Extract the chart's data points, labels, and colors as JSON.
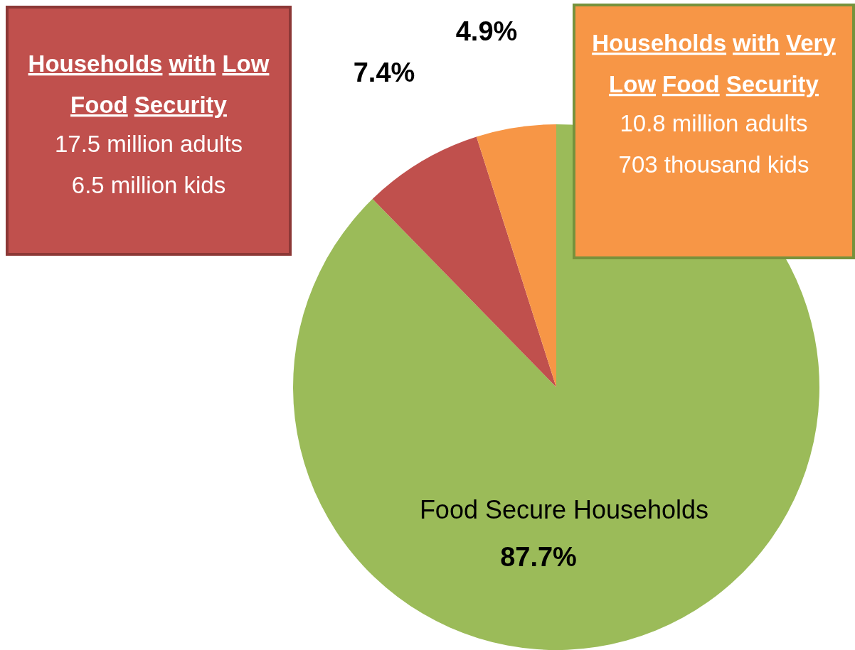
{
  "chart_data": {
    "type": "pie",
    "categories": [
      "Food Secure Households",
      "Households with Low Food Security",
      "Households with Very Low Food Security"
    ],
    "values": [
      87.7,
      7.4,
      4.9
    ],
    "colors": [
      "#9bbb59",
      "#c0504d",
      "#f79646"
    ],
    "value_labels": [
      "87.7%",
      "7.4%",
      "4.9%"
    ],
    "annotations": [
      "17.5 million adults",
      "6.5 million kids",
      "10.8 million adults",
      "703 thousand kids"
    ]
  }
}
